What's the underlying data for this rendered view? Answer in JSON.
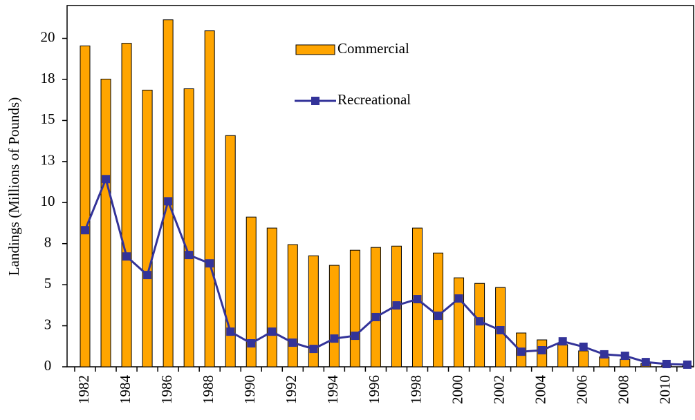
{
  "chart_data": {
    "type": "bar_line",
    "y_axis_label": "Landings (Millions of Pounds)",
    "categories": [
      "1982",
      null,
      "1984",
      null,
      "1986",
      null,
      "1988",
      null,
      "1990",
      null,
      "1992",
      null,
      "1994",
      null,
      "1996",
      null,
      "1998",
      null,
      "2000",
      null,
      "2002",
      null,
      "2004",
      null,
      "2006",
      null,
      "2008",
      null,
      "2010",
      null
    ],
    "series": [
      {
        "name": "Commercial",
        "type": "bar",
        "color": "#ffa500",
        "values": [
          19.54,
          17.52,
          19.7,
          16.85,
          21.13,
          16.93,
          20.46,
          14.08,
          9.12,
          8.45,
          7.44,
          6.76,
          6.18,
          7.1,
          7.27,
          7.35,
          8.45,
          6.93,
          5.42,
          5.08,
          4.83,
          2.06,
          1.64,
          1.35,
          0.97,
          0.6,
          0.46,
          0.2,
          0.1,
          0.05
        ]
      },
      {
        "name": "Recreational",
        "type": "line",
        "color": "#333399",
        "values": [
          8.32,
          11.43,
          6.72,
          5.59,
          10.08,
          6.81,
          6.3,
          2.14,
          1.43,
          2.14,
          1.47,
          1.09,
          1.72,
          1.89,
          3.03,
          3.74,
          4.12,
          3.11,
          4.16,
          2.77,
          2.23,
          0.92,
          1.01,
          1.55,
          1.22,
          0.76,
          0.67,
          0.29,
          0.17,
          0.13
        ]
      }
    ],
    "ylim": [
      0,
      22
    ],
    "yticks": [
      0,
      {
        "value": 2.5,
        "label": "3"
      },
      5,
      {
        "value": 7.5,
        "label": "8"
      },
      10,
      {
        "value": 12.5,
        "label": "13"
      },
      15,
      {
        "value": 17.5,
        "label": "18"
      },
      20
    ],
    "grid": false,
    "legend": "top-center"
  }
}
